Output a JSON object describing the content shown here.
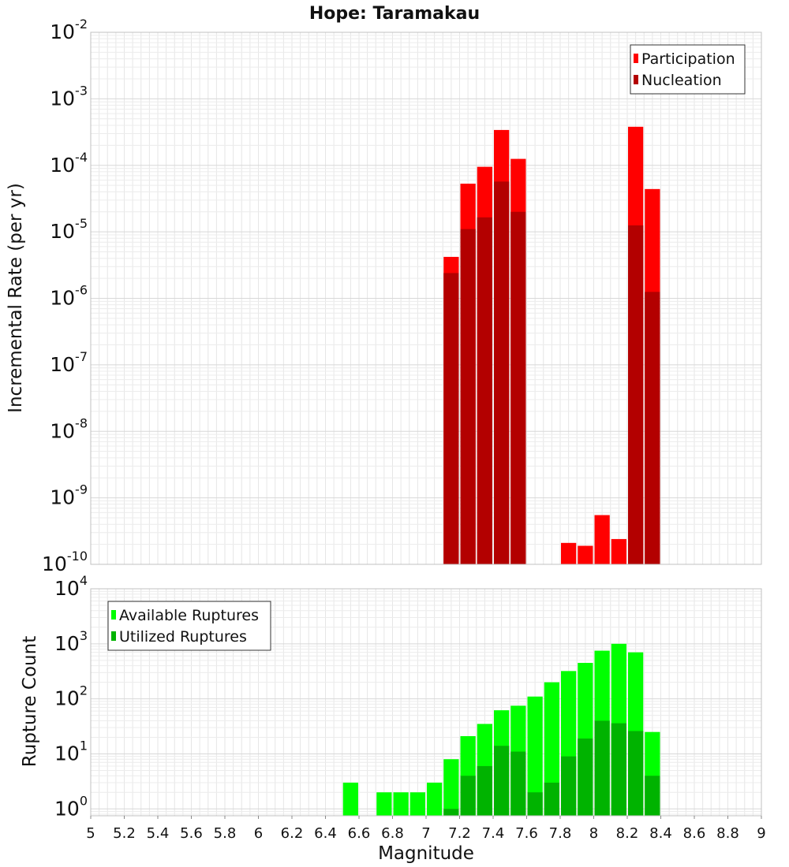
{
  "title": "Hope: Taramakau",
  "chart_data": [
    {
      "type": "bar",
      "name": "rate-panel",
      "ylabel": "Incremental Rate (per yr)",
      "yscale": "log",
      "ylim": [
        1e-10,
        0.01
      ],
      "xlim": [
        5,
        9
      ],
      "grid": true,
      "legend_position": "top-right",
      "y_tick_bases": [
        "10",
        "10",
        "10",
        "10",
        "10",
        "10",
        "10",
        "10",
        "10"
      ],
      "y_tick_exponents": [
        "-10",
        "-9",
        "-8",
        "-7",
        "-6",
        "-5",
        "-4",
        "-3",
        "-2"
      ],
      "series": [
        {
          "name": "Participation",
          "color": "#ff0000",
          "bins": [
            {
              "x": 7.15,
              "y": 4.2e-06
            },
            {
              "x": 7.25,
              "y": 5.3e-05
            },
            {
              "x": 7.35,
              "y": 9.5e-05
            },
            {
              "x": 7.45,
              "y": 0.00034
            },
            {
              "x": 7.55,
              "y": 0.000125
            },
            {
              "x": 7.85,
              "y": 2.1e-10
            },
            {
              "x": 7.95,
              "y": 1.9e-10
            },
            {
              "x": 8.05,
              "y": 5.5e-10
            },
            {
              "x": 8.15,
              "y": 2.4e-10
            },
            {
              "x": 8.25,
              "y": 0.00038
            },
            {
              "x": 8.35,
              "y": 4.4e-05
            }
          ]
        },
        {
          "name": "Nucleation",
          "color": "#b30000",
          "bins": [
            {
              "x": 7.15,
              "y": 2.4e-06
            },
            {
              "x": 7.25,
              "y": 1.1e-05
            },
            {
              "x": 7.35,
              "y": 1.65e-05
            },
            {
              "x": 7.45,
              "y": 5.7e-05
            },
            {
              "x": 7.55,
              "y": 2e-05
            },
            {
              "x": 8.25,
              "y": 1.25e-05
            },
            {
              "x": 8.35,
              "y": 1.25e-06
            }
          ]
        }
      ]
    },
    {
      "type": "bar",
      "name": "count-panel",
      "ylabel": "Rupture Count",
      "xlabel": "Magnitude",
      "yscale": "log",
      "ylim": [
        0.75,
        10000
      ],
      "xlim": [
        5,
        9
      ],
      "grid": true,
      "legend_position": "top-left",
      "y_tick_bases": [
        "10",
        "10",
        "10",
        "10",
        "10"
      ],
      "y_tick_exponents": [
        "0",
        "1",
        "2",
        "3",
        "4"
      ],
      "x_ticks": [
        "5",
        "5.2",
        "5.4",
        "5.6",
        "5.8",
        "6",
        "6.2",
        "6.4",
        "6.6",
        "6.8",
        "7",
        "7.2",
        "7.4",
        "7.6",
        "7.8",
        "8",
        "8.2",
        "8.4",
        "8.6",
        "8.8",
        "9"
      ],
      "series": [
        {
          "name": "Available Ruptures",
          "color": "#00ff00",
          "bins": [
            {
              "x": 6.55,
              "y": 3
            },
            {
              "x": 6.75,
              "y": 2
            },
            {
              "x": 6.85,
              "y": 2
            },
            {
              "x": 6.95,
              "y": 2
            },
            {
              "x": 7.05,
              "y": 3
            },
            {
              "x": 7.15,
              "y": 8
            },
            {
              "x": 7.25,
              "y": 21
            },
            {
              "x": 7.35,
              "y": 35
            },
            {
              "x": 7.45,
              "y": 62
            },
            {
              "x": 7.55,
              "y": 75
            },
            {
              "x": 7.65,
              "y": 110
            },
            {
              "x": 7.75,
              "y": 200
            },
            {
              "x": 7.85,
              "y": 320
            },
            {
              "x": 7.95,
              "y": 450
            },
            {
              "x": 8.05,
              "y": 750
            },
            {
              "x": 8.15,
              "y": 1000
            },
            {
              "x": 8.25,
              "y": 700
            },
            {
              "x": 8.35,
              "y": 25
            }
          ]
        },
        {
          "name": "Utilized Ruptures",
          "color": "#00b300",
          "bins": [
            {
              "x": 7.15,
              "y": 1
            },
            {
              "x": 7.25,
              "y": 4
            },
            {
              "x": 7.35,
              "y": 6
            },
            {
              "x": 7.45,
              "y": 14
            },
            {
              "x": 7.55,
              "y": 11
            },
            {
              "x": 7.65,
              "y": 2
            },
            {
              "x": 7.75,
              "y": 3
            },
            {
              "x": 7.85,
              "y": 9
            },
            {
              "x": 7.95,
              "y": 19
            },
            {
              "x": 8.05,
              "y": 40
            },
            {
              "x": 8.15,
              "y": 36
            },
            {
              "x": 8.25,
              "y": 26
            },
            {
              "x": 8.35,
              "y": 4
            }
          ]
        }
      ]
    }
  ]
}
